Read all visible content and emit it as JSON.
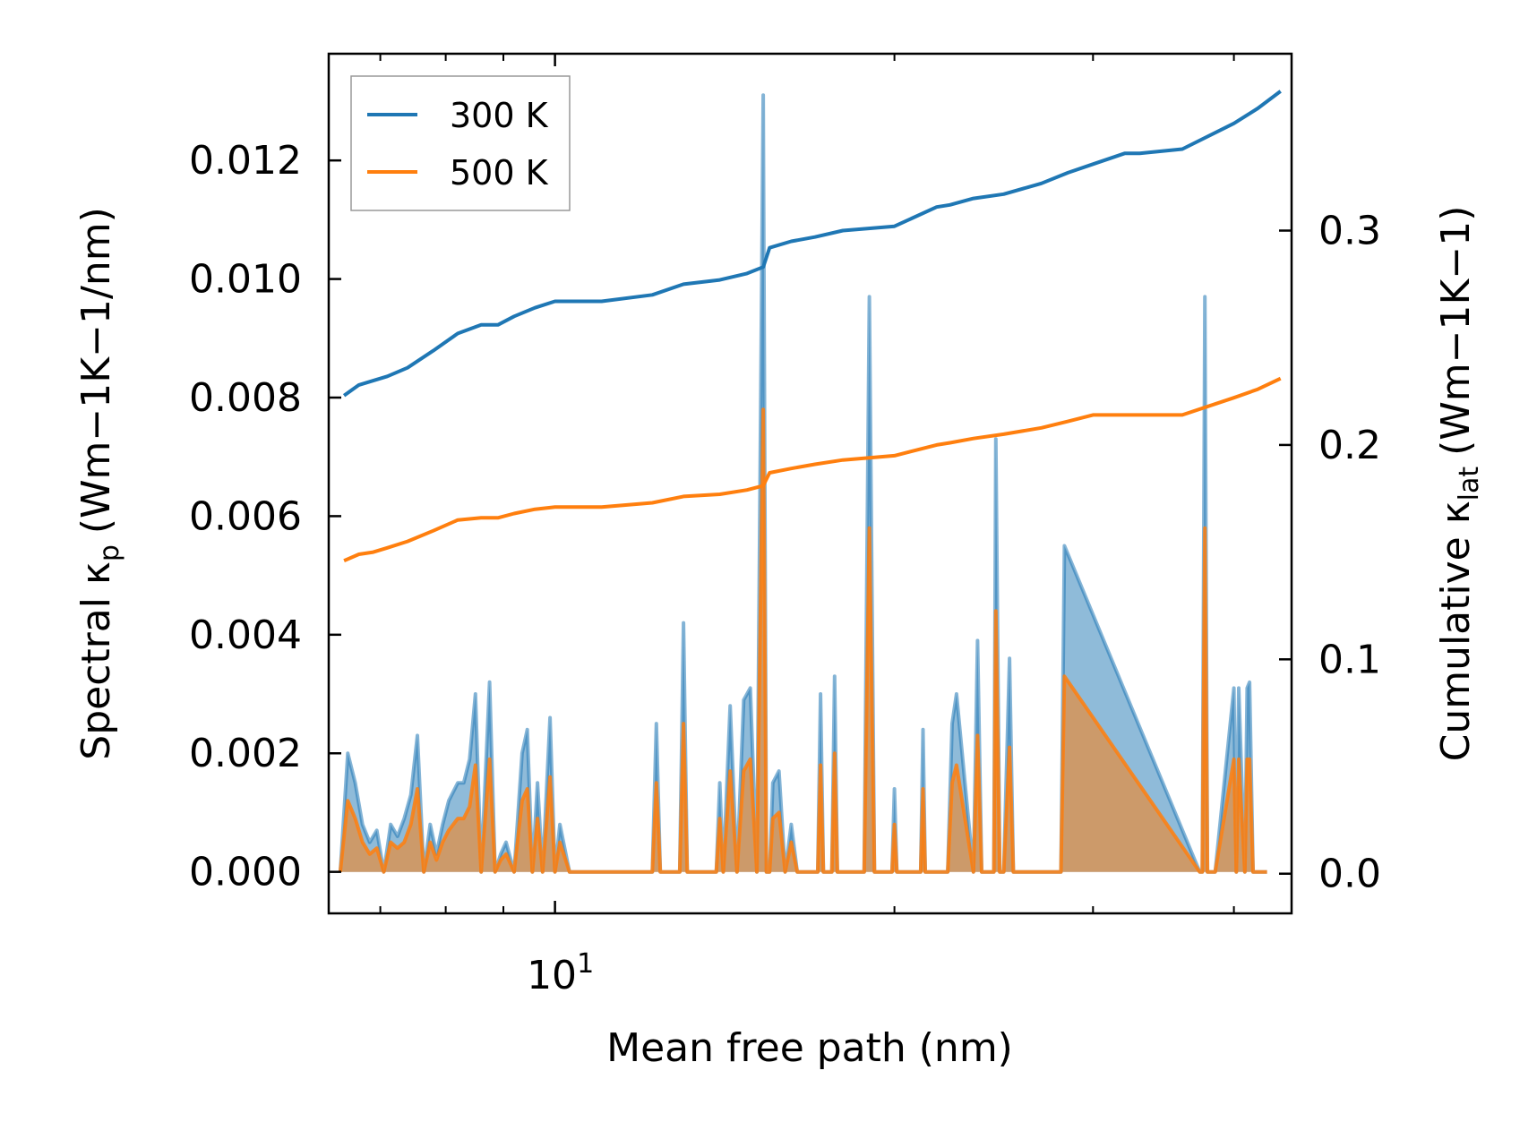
{
  "chart_data": {
    "type": "line",
    "xlabel": "Mean free path (nm)",
    "x_scale": "log",
    "xlim": [
      6.3,
      45
    ],
    "x_tick_labels": [
      {
        "value": 10,
        "base": "10",
        "exp": "1"
      }
    ],
    "left_axis": {
      "label_main": "Spectral κ",
      "label_sub": "p",
      "label_unit": "(Wm−1K−1/nm)",
      "ylim": [
        -0.0007,
        0.0138
      ],
      "ticks": [
        0.0,
        0.002,
        0.004,
        0.006,
        0.008,
        0.01,
        0.012
      ],
      "tick_labels": [
        "0.000",
        "0.002",
        "0.004",
        "0.006",
        "0.008",
        "0.010",
        "0.012"
      ]
    },
    "right_axis": {
      "label_main": "Cumulative κ",
      "label_sub": "lat",
      "label_unit": "(Wm−1K−1)",
      "ylim": [
        -0.0185,
        0.3825
      ],
      "ticks": [
        0.0,
        0.1,
        0.2,
        0.3
      ],
      "tick_labels": [
        "0.0",
        "0.1",
        "0.2",
        "0.3"
      ]
    },
    "legend": {
      "location": "upper-left",
      "entries": [
        {
          "label": "300 K",
          "color": "#1f77b4"
        },
        {
          "label": "500 K",
          "color": "#ff7f0e"
        }
      ]
    },
    "cumulative_series": [
      {
        "name": "300 K",
        "color": "#1f77b4",
        "x": [
          6.5,
          6.7,
          6.9,
          7.1,
          7.4,
          7.8,
          8.2,
          8.6,
          8.9,
          9.2,
          9.6,
          10.0,
          11.0,
          12.2,
          13.0,
          14.0,
          14.8,
          15.3,
          15.5,
          16.2,
          17.0,
          18.0,
          20.0,
          21.8,
          22.4,
          23.5,
          25.0,
          27.0,
          28.5,
          30.0,
          32.0,
          33.0,
          36.0,
          40.0,
          42.0,
          44.0
        ],
        "y": [
          0.223,
          0.228,
          0.23,
          0.232,
          0.236,
          0.244,
          0.252,
          0.256,
          0.256,
          0.26,
          0.264,
          0.267,
          0.267,
          0.27,
          0.275,
          0.277,
          0.28,
          0.283,
          0.292,
          0.295,
          0.297,
          0.3,
          0.302,
          0.311,
          0.312,
          0.315,
          0.317,
          0.322,
          0.327,
          0.331,
          0.336,
          0.336,
          0.338,
          0.35,
          0.357,
          0.365
        ]
      },
      {
        "name": "500 K",
        "color": "#ff7f0e",
        "x": [
          6.5,
          6.7,
          6.9,
          7.1,
          7.4,
          7.8,
          8.2,
          8.6,
          8.9,
          9.2,
          9.6,
          10.0,
          11.0,
          12.2,
          13.0,
          14.0,
          14.8,
          15.3,
          15.5,
          16.2,
          17.0,
          18.0,
          20.0,
          21.8,
          22.4,
          23.5,
          25.0,
          27.0,
          28.5,
          30.0,
          32.0,
          33.0,
          36.0,
          40.0,
          42.0,
          44.0
        ],
        "y": [
          0.146,
          0.149,
          0.15,
          0.152,
          0.155,
          0.16,
          0.165,
          0.166,
          0.166,
          0.168,
          0.17,
          0.171,
          0.171,
          0.173,
          0.176,
          0.177,
          0.179,
          0.181,
          0.187,
          0.189,
          0.191,
          0.193,
          0.195,
          0.2,
          0.201,
          0.203,
          0.205,
          0.208,
          0.211,
          0.214,
          0.214,
          0.214,
          0.214,
          0.222,
          0.226,
          0.231
        ]
      }
    ],
    "spectral_series": [
      {
        "name": "300 K",
        "color": "#1f77b4",
        "x": [
          6.45,
          6.55,
          6.65,
          6.75,
          6.85,
          6.95,
          7.05,
          7.15,
          7.25,
          7.35,
          7.45,
          7.55,
          7.65,
          7.75,
          7.85,
          7.95,
          8.05,
          8.2,
          8.3,
          8.4,
          8.5,
          8.6,
          8.75,
          8.85,
          8.95,
          9.05,
          9.2,
          9.35,
          9.45,
          9.55,
          9.65,
          9.75,
          9.9,
          10.0,
          10.1,
          10.3,
          12.2,
          12.3,
          12.4,
          12.9,
          13.0,
          13.1,
          13.9,
          14.0,
          14.1,
          14.3,
          14.5,
          14.7,
          14.9,
          15.1,
          15.3,
          15.4,
          15.5,
          15.6,
          15.8,
          16.0,
          16.2,
          16.4,
          17.1,
          17.2,
          17.3,
          17.6,
          17.7,
          17.8,
          18.8,
          19.0,
          19.2,
          19.9,
          20.0,
          20.1,
          21.1,
          21.2,
          21.3,
          22.3,
          22.5,
          22.7,
          23.5,
          23.7,
          23.9,
          24.5,
          24.6,
          24.8,
          25.0,
          25.3,
          25.5,
          25.7,
          26.0,
          26.3,
          26.5,
          26.7,
          27.0,
          27.2,
          27.4,
          27.6,
          27.9,
          28.1,
          28.3,
          37.3,
          37.5,
          37.7,
          37.9,
          38.1,
          38.3,
          38.5,
          40.0,
          40.2,
          40.4,
          40.9,
          41.1,
          41.3,
          41.6,
          41.8,
          42.0,
          42.2,
          42.6,
          42.8
        ],
        "y": [
          0.0,
          0.002,
          0.0015,
          0.0008,
          0.0005,
          0.0007,
          0.0,
          0.0008,
          0.0006,
          0.0009,
          0.0013,
          0.0023,
          0.0,
          0.0008,
          0.0003,
          0.0008,
          0.0012,
          0.0015,
          0.0015,
          0.0019,
          0.003,
          0.0,
          0.0032,
          0.0,
          0.0003,
          0.0005,
          0.0,
          0.002,
          0.0024,
          0.0,
          0.0015,
          0.0,
          0.0026,
          0.0,
          0.0008,
          0.0,
          0.0,
          0.0025,
          0.0,
          0.0,
          0.0042,
          0.0,
          0.0,
          0.0015,
          0.0,
          0.0028,
          0.0,
          0.0029,
          0.0031,
          0.0,
          0.0131,
          0.0,
          0.0,
          0.0015,
          0.0017,
          0.0,
          0.0008,
          0.0,
          0.0,
          0.003,
          0.0,
          0.0,
          0.0033,
          0.0,
          0.0,
          0.0097,
          0.0,
          0.0,
          0.0014,
          0.0,
          0.0,
          0.0024,
          0.0,
          0.0,
          0.0025,
          0.003,
          0.0,
          0.0039,
          0.0,
          0.0,
          0.0073,
          0.0,
          0.0,
          0.0036,
          0.0,
          0.0,
          0.0,
          0.0,
          0.0,
          0.0,
          0.0,
          0.0,
          0.0,
          0.0,
          0.0,
          0.0,
          0.0055,
          0.0,
          0.0,
          0.0097,
          0.0,
          0.0,
          0.0,
          0.0,
          0.0031,
          0.0,
          0.0031,
          0.0,
          0.0031,
          0.0032,
          0.0,
          0.0,
          0.0,
          0.0,
          0.0,
          0.0
        ],
        "stroke_opacity": 0.55,
        "fill_opacity": 0.5
      },
      {
        "name": "500 K",
        "color": "#ff7f0e",
        "x": [
          6.45,
          6.55,
          6.65,
          6.75,
          6.85,
          6.95,
          7.05,
          7.15,
          7.25,
          7.35,
          7.45,
          7.55,
          7.65,
          7.75,
          7.85,
          7.95,
          8.05,
          8.2,
          8.3,
          8.4,
          8.5,
          8.6,
          8.75,
          8.85,
          8.95,
          9.05,
          9.2,
          9.35,
          9.45,
          9.55,
          9.65,
          9.75,
          9.9,
          10.0,
          10.1,
          10.3,
          12.2,
          12.3,
          12.4,
          12.9,
          13.0,
          13.1,
          13.9,
          14.0,
          14.1,
          14.3,
          14.5,
          14.7,
          14.9,
          15.1,
          15.3,
          15.4,
          15.5,
          15.6,
          15.8,
          16.0,
          16.2,
          16.4,
          17.1,
          17.2,
          17.3,
          17.6,
          17.7,
          17.8,
          18.8,
          19.0,
          19.2,
          19.9,
          20.0,
          20.1,
          21.1,
          21.2,
          21.3,
          22.3,
          22.5,
          22.7,
          23.5,
          23.7,
          23.9,
          24.5,
          24.6,
          24.8,
          25.0,
          25.3,
          25.5,
          25.7,
          26.0,
          26.3,
          26.5,
          26.7,
          27.0,
          27.2,
          27.4,
          27.6,
          27.9,
          28.1,
          28.3,
          37.3,
          37.5,
          37.7,
          37.9,
          38.1,
          38.3,
          38.5,
          40.0,
          40.2,
          40.4,
          40.9,
          41.1,
          41.3,
          41.6,
          41.8,
          42.0,
          42.2,
          42.6,
          42.8
        ],
        "y": [
          0.0,
          0.0012,
          0.0009,
          0.0005,
          0.0003,
          0.0004,
          0.0,
          0.0005,
          0.0004,
          0.0005,
          0.0008,
          0.0014,
          0.0,
          0.0005,
          0.0002,
          0.0005,
          0.0007,
          0.0009,
          0.0009,
          0.0011,
          0.0018,
          0.0,
          0.0019,
          0.0,
          0.0002,
          0.0003,
          0.0,
          0.0012,
          0.0014,
          0.0,
          0.0009,
          0.0,
          0.0016,
          0.0,
          0.0005,
          0.0,
          0.0,
          0.0015,
          0.0,
          0.0,
          0.0025,
          0.0,
          0.0,
          0.0009,
          0.0,
          0.0017,
          0.0,
          0.0017,
          0.0019,
          0.0,
          0.0078,
          0.0,
          0.0,
          0.0009,
          0.001,
          0.0,
          0.0005,
          0.0,
          0.0,
          0.0018,
          0.0,
          0.0,
          0.002,
          0.0,
          0.0,
          0.0058,
          0.0,
          0.0,
          0.0008,
          0.0,
          0.0,
          0.0014,
          0.0,
          0.0,
          0.0015,
          0.0018,
          0.0,
          0.0023,
          0.0,
          0.0,
          0.0044,
          0.0,
          0.0,
          0.0021,
          0.0,
          0.0,
          0.0,
          0.0,
          0.0,
          0.0,
          0.0,
          0.0,
          0.0,
          0.0,
          0.0,
          0.0,
          0.0033,
          0.0,
          0.0,
          0.0058,
          0.0,
          0.0,
          0.0,
          0.0,
          0.0019,
          0.0,
          0.0019,
          0.0,
          0.0019,
          0.0019,
          0.0,
          0.0,
          0.0,
          0.0,
          0.0,
          0.0
        ],
        "stroke_opacity": 0.85,
        "fill_opacity": 0.55
      }
    ]
  }
}
